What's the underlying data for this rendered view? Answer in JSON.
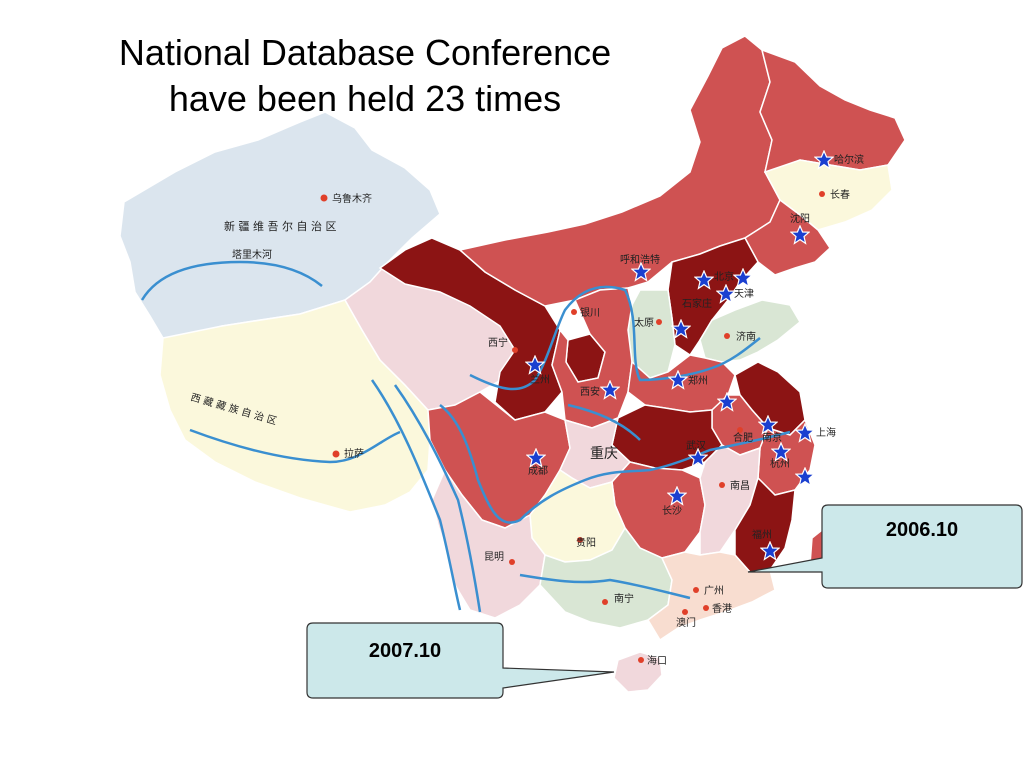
{
  "title": {
    "line1": "National Database Conference",
    "line2": "have been held 23 times"
  },
  "colors": {
    "dark_red": "#8c1414",
    "red": "#cf5252",
    "pink": "#f1d8dc",
    "cream": "#fbf8dc",
    "light_blue": "#dbe5ee",
    "light_green": "#d9e6d4",
    "peach": "#f8ddd0",
    "river": "#3a8fd0",
    "star": "#1a3fd0",
    "callout_fill": "#cce8ea"
  },
  "cities": {
    "urumqi": "乌鲁木齐",
    "xinjiang": "新 疆 维 吾 尔 自 治 区",
    "tarim": "塔里木河",
    "tibet": "西 藏 藏 族 自 治 区",
    "lhasa": "拉萨",
    "harbin": "哈尔滨",
    "changchun": "长春",
    "shenyang": "沈阳",
    "hohhot": "呼和浩特",
    "beijing": "北京",
    "tianjin": "天津",
    "shijiazhuang": "石家庄",
    "yinchuan": "银川",
    "taiyuan": "太原",
    "jinan": "济南",
    "xining": "西宁",
    "lanzhou": "兰州",
    "xian": "西安",
    "zhengzhou": "郑州",
    "hefei": "合肥",
    "nanjing": "南京",
    "shanghai": "上海",
    "hangzhou": "杭州",
    "wuhan": "武汉",
    "chongqing": "重庆",
    "chengdu": "成都",
    "changsha": "长沙",
    "nanchang": "南昌",
    "fuzhou": "福州",
    "guiyang": "贵阳",
    "kunming": "昆明",
    "nanning": "南宁",
    "guangzhou": "广州",
    "hongkong": "香港",
    "macau": "澳门",
    "haikou": "海口"
  },
  "callouts": {
    "fuzhou_year": "2006.10",
    "haikou_year": "2007.10"
  }
}
